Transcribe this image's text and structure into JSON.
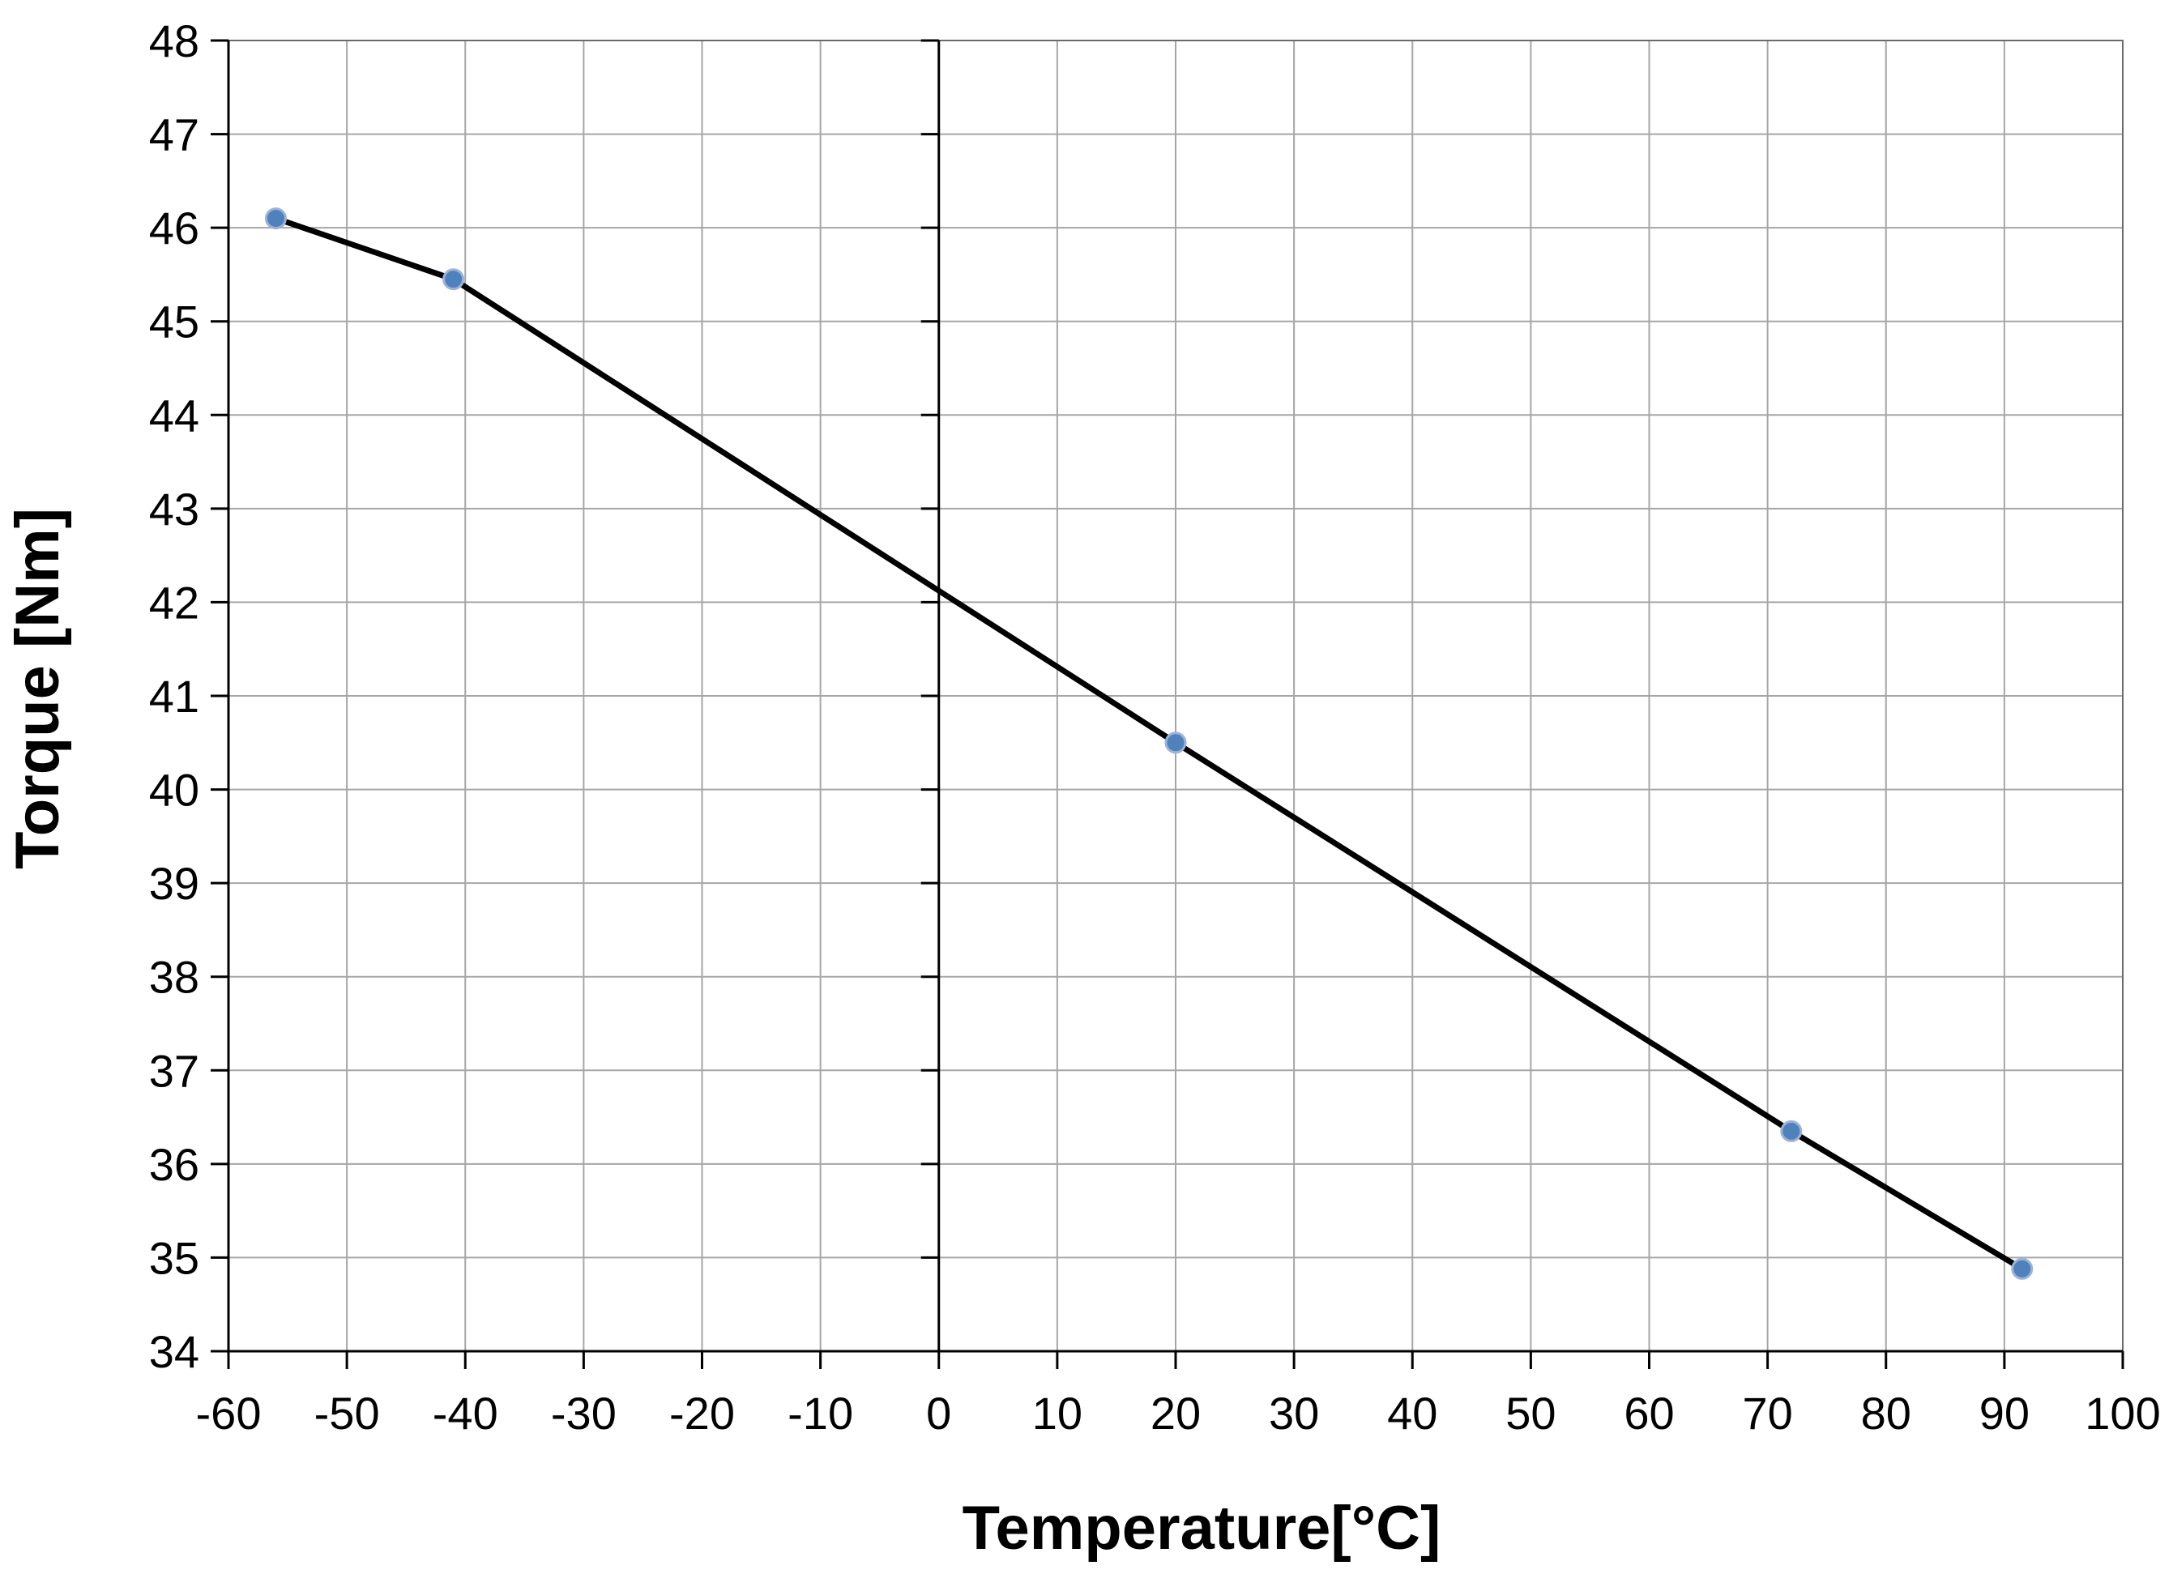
{
  "chart_data": {
    "type": "line",
    "title": "",
    "xlabel": "Temperature[°C]",
    "ylabel": "Torque [Nm]",
    "xlim": [
      -60,
      100
    ],
    "ylim": [
      34,
      48
    ],
    "x_ticks": [
      -60,
      -50,
      -40,
      -30,
      -20,
      -10,
      0,
      10,
      20,
      30,
      40,
      50,
      60,
      70,
      80,
      90,
      100
    ],
    "y_ticks": [
      34,
      35,
      36,
      37,
      38,
      39,
      40,
      41,
      42,
      43,
      44,
      45,
      46,
      47,
      48
    ],
    "grid": true,
    "legend": "none",
    "series": [
      {
        "x": [
          -56,
          -41,
          20,
          72,
          91.5
        ],
        "y": [
          46.1,
          45.45,
          40.5,
          36.35,
          34.88
        ],
        "line_color": "#000000",
        "marker_color": "#4f81bd"
      }
    ]
  }
}
